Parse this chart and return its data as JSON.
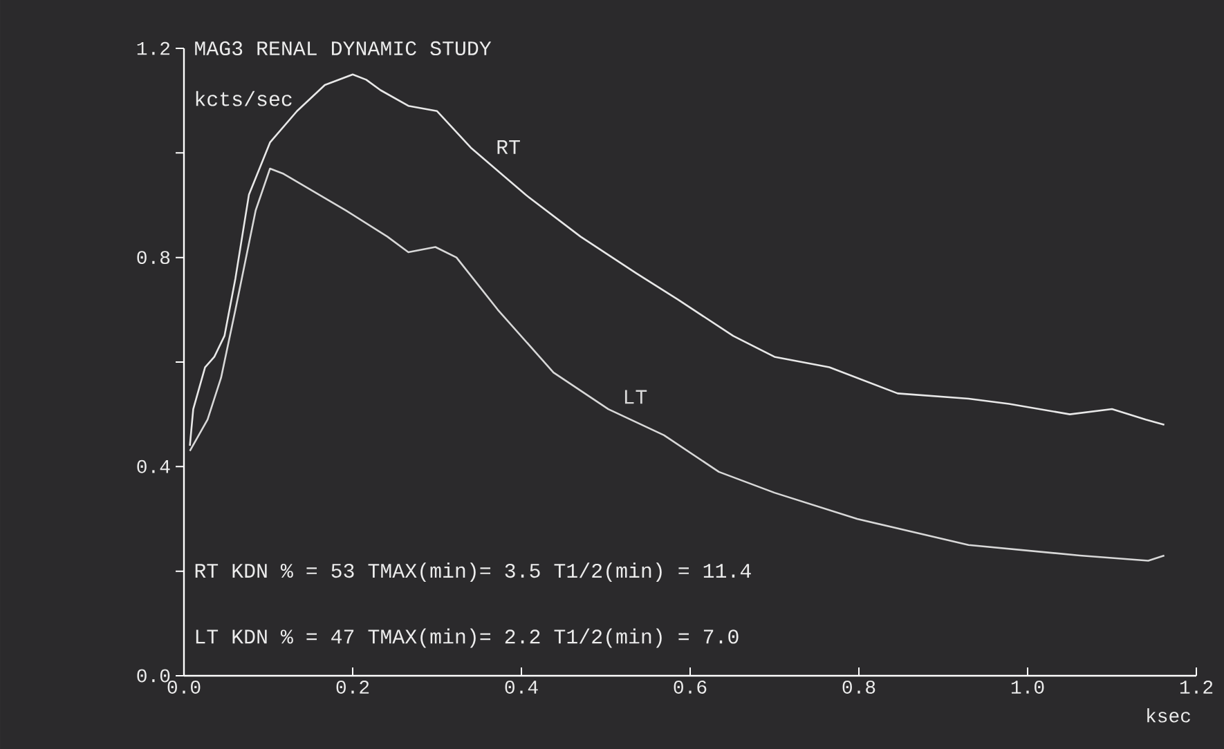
{
  "chart_data": {
    "type": "line",
    "title": "MAG3 RENAL DYNAMIC STUDY",
    "ylabel": "kcts/sec",
    "xlabel": "ksec",
    "annotations": [
      "RT KDN % = 53 TMAX(min)= 3.5 T1/2(min) = 11.4",
      "LT KDN % = 47 TMAX(min)= 2.2 T1/2(min) = 7.0"
    ],
    "xlim": [
      0,
      1.2
    ],
    "ylim": [
      0,
      1.2
    ],
    "xticks": [
      {
        "value": 0,
        "label": "0.0"
      },
      {
        "value": 0.2,
        "label": "0.2"
      },
      {
        "value": 0.4,
        "label": "0.4"
      },
      {
        "value": 0.6,
        "label": "0.6"
      },
      {
        "value": 0.8,
        "label": "0.8"
      },
      {
        "value": 1.0,
        "label": "1.0"
      },
      {
        "value": 1.2,
        "label": "1.2"
      }
    ],
    "yticks": [
      {
        "value": 0,
        "label": "0.0"
      },
      {
        "value": 0.2,
        "label": null
      },
      {
        "value": 0.4,
        "label": "0.4"
      },
      {
        "value": 0.6,
        "label": null
      },
      {
        "value": 0.8,
        "label": "0.8"
      },
      {
        "value": 1.0,
        "label": null
      },
      {
        "value": 1.2,
        "label": "1.2"
      }
    ],
    "marker": "none",
    "line_style": "solid",
    "series": [
      {
        "name": "RT",
        "color": "#e8e8e8",
        "x": [
          0.007,
          0.011,
          0.025,
          0.036,
          0.048,
          0.061,
          0.077,
          0.102,
          0.134,
          0.167,
          0.2,
          0.216,
          0.233,
          0.266,
          0.3,
          0.34,
          0.405,
          0.47,
          0.536,
          0.585,
          0.651,
          0.7,
          0.765,
          0.846,
          0.93,
          0.978,
          1.05,
          1.1,
          1.14,
          1.162
        ],
        "values": [
          0.44,
          0.51,
          0.59,
          0.61,
          0.65,
          0.76,
          0.92,
          1.02,
          1.08,
          1.13,
          1.15,
          1.14,
          1.12,
          1.09,
          1.08,
          1.01,
          0.92,
          0.84,
          0.77,
          0.72,
          0.65,
          0.61,
          0.59,
          0.54,
          0.53,
          0.52,
          0.5,
          0.51,
          0.49,
          0.48
        ]
      },
      {
        "name": "LT",
        "color": "#d8d8d8",
        "x": [
          0.007,
          0.028,
          0.044,
          0.061,
          0.085,
          0.102,
          0.118,
          0.192,
          0.241,
          0.266,
          0.298,
          0.323,
          0.372,
          0.438,
          0.503,
          0.569,
          0.634,
          0.7,
          0.798,
          0.93,
          1.062,
          1.143,
          1.162
        ],
        "values": [
          0.43,
          0.49,
          0.57,
          0.7,
          0.89,
          0.97,
          0.96,
          0.89,
          0.84,
          0.81,
          0.82,
          0.8,
          0.7,
          0.58,
          0.51,
          0.46,
          0.39,
          0.35,
          0.3,
          0.25,
          0.23,
          0.22,
          0.23
        ]
      }
    ]
  }
}
